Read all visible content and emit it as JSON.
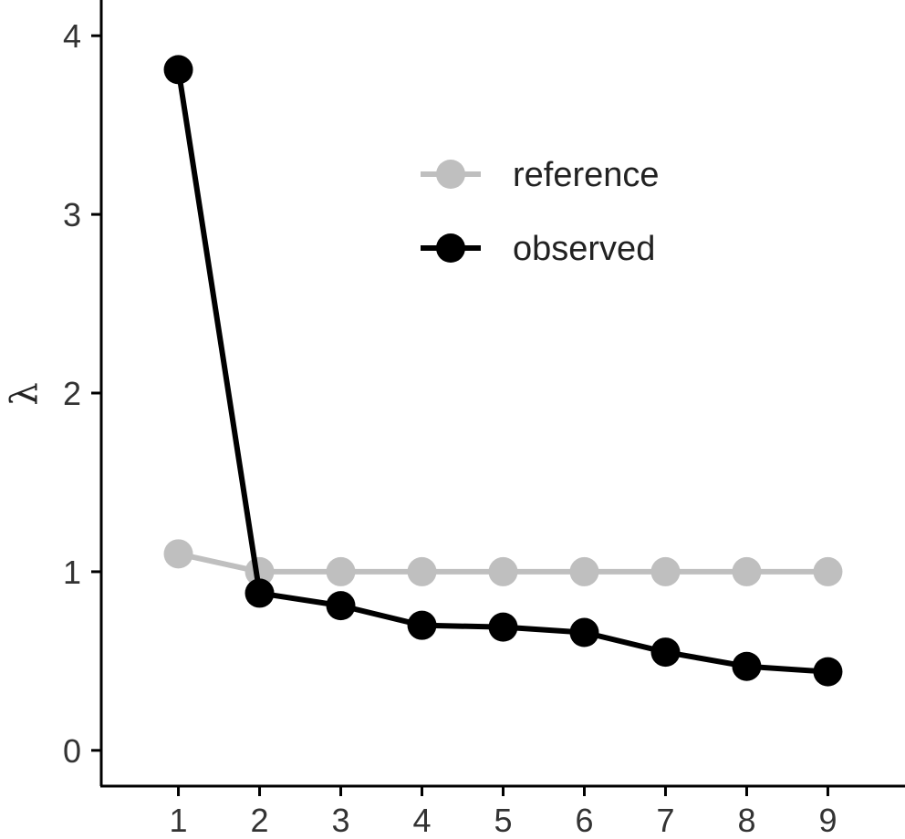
{
  "chart_data": {
    "type": "line",
    "x": [
      1,
      2,
      3,
      4,
      5,
      6,
      7,
      8,
      9
    ],
    "x_ticks": [
      "1",
      "2",
      "3",
      "4",
      "5",
      "6",
      "7",
      "8",
      "9"
    ],
    "y_ticks": [
      "0",
      "1",
      "2",
      "3",
      "4"
    ],
    "ylabel": "λ",
    "xlabel": "",
    "xlim": [
      0.05,
      9.95
    ],
    "ylim": [
      -0.2,
      4.2
    ],
    "grid": false,
    "legend_position": "top-center",
    "series": [
      {
        "name": "reference",
        "color": "#bfbfbf",
        "values": [
          1.1,
          1.0,
          1.0,
          1.0,
          1.0,
          1.0,
          1.0,
          1.0,
          1.0
        ]
      },
      {
        "name": "observed",
        "color": "#000000",
        "values": [
          3.81,
          0.88,
          0.81,
          0.7,
          0.69,
          0.66,
          0.55,
          0.47,
          0.44
        ]
      }
    ]
  }
}
